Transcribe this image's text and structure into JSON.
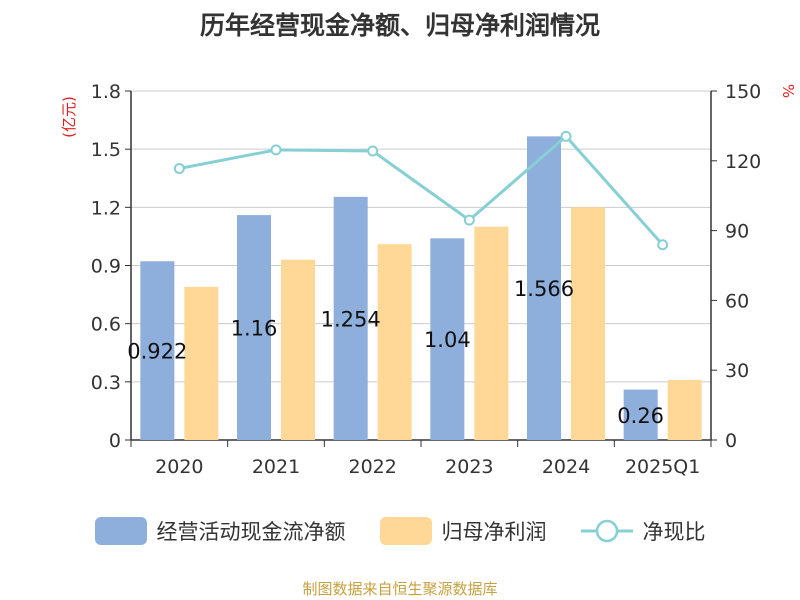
{
  "title": "历年经营现金净额、归母净利润情况",
  "source": "制图数据来自恒生聚源数据库",
  "colors": {
    "bar1": "#8eaedb",
    "bar2": "#ffd898",
    "line": "#86d0d4",
    "axis": "#333333",
    "grid": "#cccccc",
    "unit": "#e02020"
  },
  "chart_data": {
    "type": "bar",
    "categories": [
      "2020",
      "2021",
      "2022",
      "2023",
      "2024",
      "2025Q1"
    ],
    "series": [
      {
        "name": "经营活动现金流净额",
        "type": "bar",
        "axis": "left",
        "values": [
          0.922,
          1.16,
          1.254,
          1.04,
          1.566,
          0.26
        ],
        "labels": [
          "0.922",
          "1.16",
          "1.254",
          "1.04",
          "1.566",
          "0.26"
        ]
      },
      {
        "name": "归母净利润",
        "type": "bar",
        "axis": "left",
        "values": [
          0.79,
          0.93,
          1.01,
          1.1,
          1.2,
          0.31
        ]
      },
      {
        "name": "净现比",
        "type": "line",
        "axis": "right",
        "values": [
          116.7,
          124.7,
          124.2,
          94.5,
          130.5,
          83.9
        ]
      }
    ],
    "left_axis": {
      "unit": "(亿元)",
      "min": 0,
      "max": 1.8,
      "ticks": [
        "0",
        "0.3",
        "0.6",
        "0.9",
        "1.2",
        "1.5",
        "1.8"
      ]
    },
    "right_axis": {
      "unit": "%",
      "min": 0,
      "max": 150,
      "ticks": [
        "0",
        "30",
        "60",
        "90",
        "120",
        "150"
      ]
    },
    "grid": true,
    "legend_position": "bottom"
  }
}
